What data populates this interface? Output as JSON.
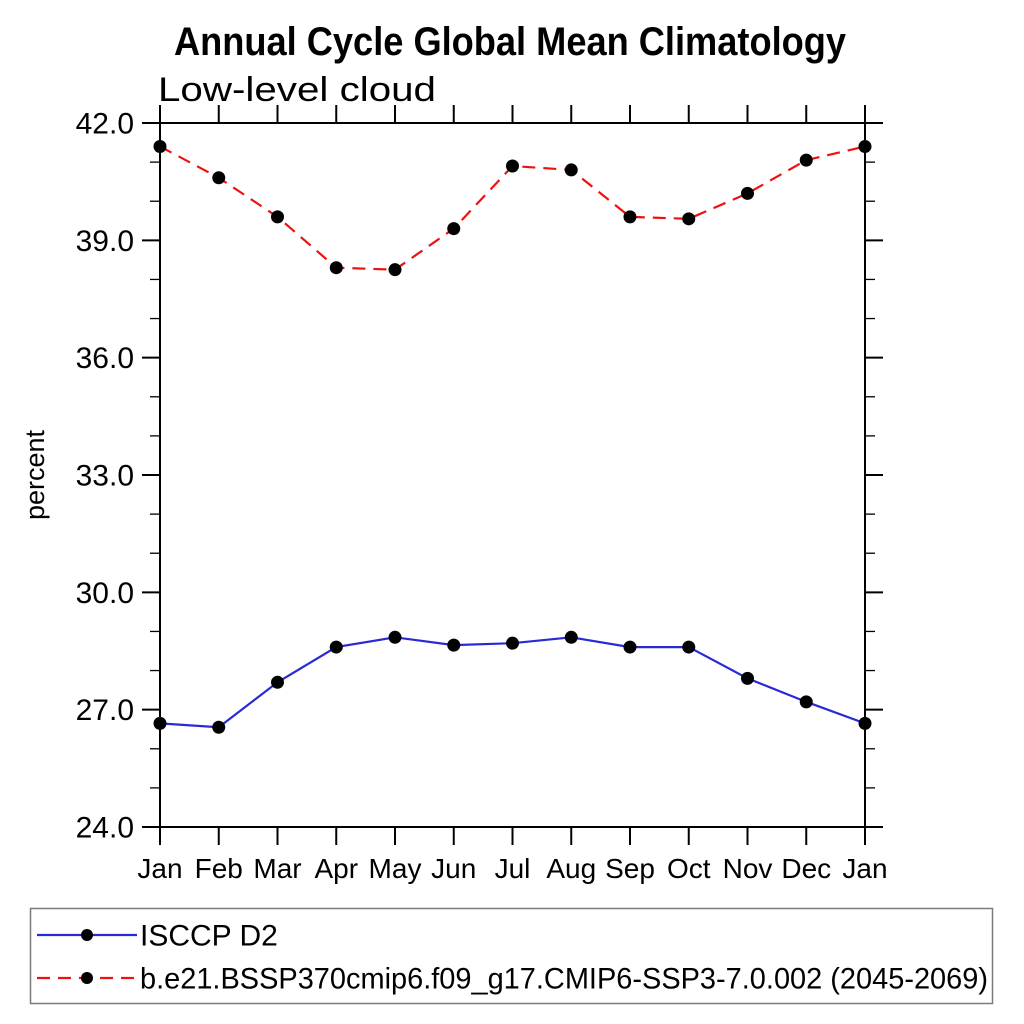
{
  "chart": {
    "title": "Annual Cycle Global Mean Climatology",
    "subtitle": "Low-level cloud",
    "ylabel": "percent"
  },
  "chart_data": {
    "type": "line",
    "title": "Annual Cycle Global Mean Climatology",
    "subtitle": "Low-level cloud",
    "xlabel": "",
    "ylabel": "percent",
    "categories": [
      "Jan",
      "Feb",
      "Mar",
      "Apr",
      "May",
      "Jun",
      "Jul",
      "Aug",
      "Sep",
      "Oct",
      "Nov",
      "Dec",
      "Jan"
    ],
    "ylim": [
      24.0,
      42.0
    ],
    "y_major_ticks": [
      24.0,
      27.0,
      30.0,
      33.0,
      36.0,
      39.0,
      42.0
    ],
    "y_minor_step": 1.0,
    "y_tick_label_format": "one_decimal",
    "grid": false,
    "legend_position": "bottom-left-box",
    "series": [
      {
        "name": "ISCCP D2",
        "color": "#2929d6",
        "line_style": "solid",
        "marker": "filled-circle",
        "marker_color": "#000000",
        "values": [
          26.65,
          26.55,
          27.7,
          28.6,
          28.85,
          28.65,
          28.7,
          28.85,
          28.6,
          28.6,
          27.8,
          27.2,
          26.65
        ]
      },
      {
        "name": "b.e21.BSSP370cmip6.f09_g17.CMIP6-SSP3-7.0.002 (2045-2069)",
        "color": "#ee1111",
        "line_style": "dashed",
        "marker": "filled-circle",
        "marker_color": "#000000",
        "values": [
          41.4,
          40.6,
          39.6,
          38.3,
          38.25,
          39.3,
          40.9,
          40.8,
          39.6,
          39.55,
          40.2,
          41.05,
          41.4
        ]
      }
    ],
    "axis_color": "#000000",
    "legend_border_color": "#7a7a7a"
  }
}
